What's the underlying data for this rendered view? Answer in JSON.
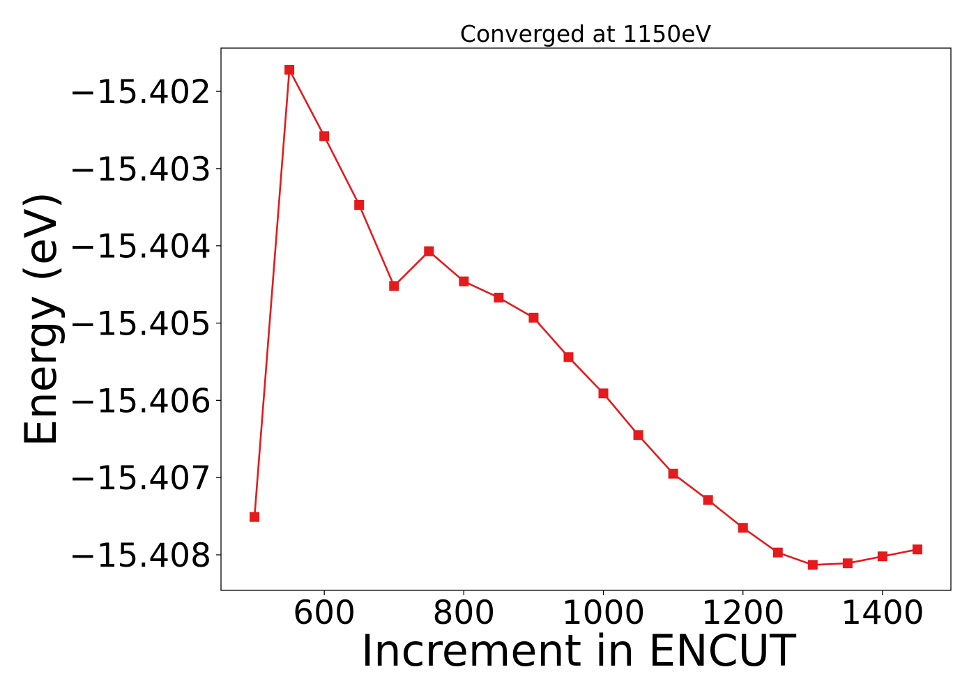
{
  "chart_data": {
    "type": "line",
    "title": "Converged at 1150eV",
    "xlabel": "Increment in ENCUT",
    "ylabel": "Energy (eV)",
    "xlim": [
      452,
      1498
    ],
    "ylim": [
      -15.40846,
      -15.40144
    ],
    "x_ticks": [
      600,
      800,
      1000,
      1200,
      1400
    ],
    "x_tick_labels": [
      "600",
      "800",
      "1000",
      "1200",
      "1400"
    ],
    "y_ticks": [
      -15.402,
      -15.403,
      -15.404,
      -15.405,
      -15.406,
      -15.407,
      -15.408
    ],
    "y_tick_labels": [
      "−15.402",
      "−15.403",
      "−15.404",
      "−15.405",
      "−15.406",
      "−15.407",
      "−15.408"
    ],
    "grid": false,
    "legend": "none",
    "colors": {
      "line": "#e41a1c",
      "marker": "#e41a1c",
      "axes": "#000000"
    },
    "series": [
      {
        "marker": "square",
        "x": [
          500,
          550,
          600,
          650,
          700,
          750,
          800,
          850,
          900,
          950,
          1000,
          1050,
          1100,
          1150,
          1200,
          1250,
          1300,
          1350,
          1400,
          1450
        ],
        "y": [
          -15.40751,
          -15.40172,
          -15.40258,
          -15.40347,
          -15.40452,
          -15.40407,
          -15.40446,
          -15.40467,
          -15.40493,
          -15.40544,
          -15.40591,
          -15.40645,
          -15.40695,
          -15.40729,
          -15.40765,
          -15.40797,
          -15.40813,
          -15.40811,
          -15.40802,
          -15.40793
        ]
      }
    ]
  }
}
